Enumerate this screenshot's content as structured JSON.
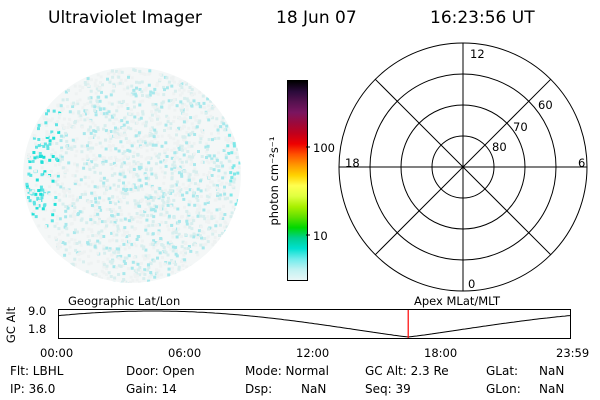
{
  "header": {
    "title": "Ultraviolet Imager",
    "date": "18 Jun 07",
    "time": "16:23:56 UT"
  },
  "colorbar": {
    "label": "photon cm⁻²s⁻¹",
    "ticks": [
      "100",
      "10"
    ],
    "colors": [
      "#000000",
      "#2a0a3a",
      "#55114f",
      "#7a1560",
      "#9b0a3c",
      "#c0001c",
      "#ee0000",
      "#ff5000",
      "#ff9600",
      "#ffd200",
      "#ffff50",
      "#e0ff40",
      "#a8f000",
      "#60e000",
      "#00d800",
      "#00d090",
      "#00e0d0",
      "#70ecec",
      "#c0f2f2",
      "#e8f6f6"
    ]
  },
  "polar_plot": {
    "mlt_labels": {
      "top": "12",
      "left": "18",
      "right": "6",
      "bottom": "0"
    },
    "lat_labels": [
      "60",
      "70",
      "80"
    ]
  },
  "timeline": {
    "ylabel": "GC Alt",
    "y_ticks": [
      "9.0",
      "1.8"
    ],
    "left_label": "Geographic Lat/Lon",
    "right_label": "Apex MLat/MLT",
    "time_ticks": [
      "00:00",
      "06:00",
      "12:00",
      "18:00",
      "23:59"
    ],
    "current_time_hours": 16.4
  },
  "info": {
    "flt": "Flt: LBHL",
    "ip": "IP: 36.0",
    "door": "Door: Open",
    "gain": "Gain: 14",
    "mode": "Mode: Normal",
    "dsp_label": "Dsp:",
    "dsp_value": "NaN",
    "gcalt": "GC Alt: 2.3 Re",
    "seq": "Seq: 39",
    "glat_label": "GLat:",
    "glat_value": "NaN",
    "glon_label": "GLon:",
    "glon_value": "NaN"
  }
}
